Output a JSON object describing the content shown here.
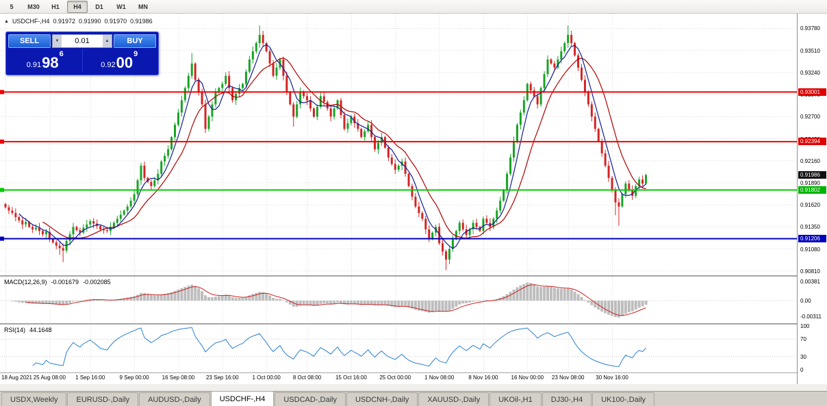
{
  "toolbar": {
    "timeframes": [
      "5",
      "M30",
      "H1",
      "H4",
      "D1",
      "W1",
      "MN"
    ],
    "active": "H4"
  },
  "icons": {
    "collapse_arrow": "▲",
    "spinner_down": "▼",
    "spinner_up": "▲"
  },
  "chart": {
    "header": {
      "symbol": "USDCHF-,H4",
      "open": "0.91972",
      "high": "0.91990",
      "low": "0.91970",
      "close": "0.91986"
    },
    "trade_panel": {
      "sell_label": "SELL",
      "buy_label": "BUY",
      "lot_size": "0.01",
      "sell_price": {
        "small": "0.91",
        "big": "98",
        "sup": "6"
      },
      "buy_price": {
        "small": "0.92",
        "big": "00",
        "sup": "9"
      }
    },
    "y_axis_labels": [
      "0.93780",
      "0.93510",
      "0.93240",
      "0.92970",
      "0.92700",
      "0.92430",
      "0.92160",
      "0.91890",
      "0.91620",
      "0.91350",
      "0.91080",
      "0.90810"
    ],
    "price_tags": [
      {
        "label": "0.93001",
        "price": 0.93001,
        "bg": "#dd0000"
      },
      {
        "label": "0.92394",
        "price": 0.92394,
        "bg": "#dd0000"
      },
      {
        "label": "0.91986",
        "price": 0.91986,
        "bg": "#111111"
      },
      {
        "label": "0.91802",
        "price": 0.91802,
        "bg": "#00b300"
      },
      {
        "label": "0.91206",
        "price": 0.91206,
        "bg": "#0000bb"
      }
    ]
  },
  "indicators": {
    "macd": {
      "name": "MACD(12,26,9)",
      "value_main": "-0.001679",
      "value_signal": "-0.002085",
      "axis_labels": [
        "0.00381",
        "0.00",
        "-0.00311"
      ]
    },
    "rsi": {
      "name": "RSI(14)",
      "value": "44.1648",
      "axis_labels": [
        "100",
        "70",
        "30",
        "0"
      ]
    }
  },
  "tabs": {
    "items": [
      "USDX,Weekly",
      "EURUSD-,Daily",
      "AUDUSD-,Daily",
      "USDCHF-,H4",
      "USDCAD-,Daily",
      "USDCNH-,Daily",
      "XAUUSD-,Daily",
      "UKOil-,H1",
      "DJ30-,H4",
      "UK100-,Daily"
    ],
    "active": "USDCHF-,H4"
  },
  "chart_data": {
    "type": "candlestick",
    "symbol": "USDCHF",
    "timeframe": "H4",
    "current_bar": {
      "open": 0.91972,
      "high": 0.9199,
      "low": 0.9197,
      "close": 0.91986
    },
    "price_axis": {
      "max": 0.9396,
      "min": 0.9075
    },
    "closes": [
      0.9159,
      0.9155,
      0.9152,
      0.9147,
      0.9143,
      0.9138,
      0.9141,
      0.9135,
      0.9132,
      0.9134,
      0.913,
      0.9126,
      0.9129,
      0.912,
      0.9116,
      0.9112,
      0.9109,
      0.9106,
      0.9118,
      0.9126,
      0.9135,
      0.9131,
      0.9128,
      0.9134,
      0.9138,
      0.9142,
      0.9139,
      0.9136,
      0.9132,
      0.9131,
      0.913,
      0.9135,
      0.914,
      0.9145,
      0.915,
      0.9155,
      0.916,
      0.9167,
      0.9175,
      0.9192,
      0.921,
      0.9195,
      0.919,
      0.9185,
      0.9192,
      0.92,
      0.9215,
      0.9222,
      0.923,
      0.9245,
      0.926,
      0.9275,
      0.929,
      0.9305,
      0.932,
      0.9335,
      0.9315,
      0.93,
      0.9285,
      0.9255,
      0.927,
      0.9285,
      0.93,
      0.9305,
      0.931,
      0.932,
      0.9305,
      0.929,
      0.9298,
      0.9305,
      0.931,
      0.9325,
      0.934,
      0.935,
      0.936,
      0.937,
      0.936,
      0.935,
      0.9335,
      0.932,
      0.933,
      0.934,
      0.932,
      0.93,
      0.9285,
      0.927,
      0.9285,
      0.93,
      0.9295,
      0.929,
      0.928,
      0.927,
      0.9282,
      0.9295,
      0.9288,
      0.928,
      0.927,
      0.928,
      0.929,
      0.9272,
      0.9255,
      0.9262,
      0.927,
      0.9262,
      0.9255,
      0.9245,
      0.9252,
      0.926,
      0.9245,
      0.923,
      0.9238,
      0.9245,
      0.9232,
      0.922,
      0.9212,
      0.9205,
      0.921,
      0.9215,
      0.92,
      0.9185,
      0.9172,
      0.916,
      0.9152,
      0.9145,
      0.9132,
      0.912,
      0.9128,
      0.9135,
      0.9115,
      0.9105,
      0.9095,
      0.9108,
      0.912,
      0.913,
      0.914,
      0.9132,
      0.9125,
      0.9132,
      0.914,
      0.9135,
      0.913,
      0.9145,
      0.914,
      0.9135,
      0.9145,
      0.9155,
      0.9167,
      0.918,
      0.92,
      0.922,
      0.924,
      0.926,
      0.9275,
      0.929,
      0.931,
      0.9302,
      0.9295,
      0.9285,
      0.9305,
      0.9322,
      0.934,
      0.9335,
      0.933,
      0.934,
      0.935,
      0.936,
      0.937,
      0.936,
      0.9345,
      0.933,
      0.9315,
      0.93,
      0.9285,
      0.927,
      0.9255,
      0.924,
      0.9225,
      0.921,
      0.9195,
      0.918,
      0.9165,
      0.916,
      0.9175,
      0.9188,
      0.918,
      0.9173,
      0.9185,
      0.9193,
      0.9188,
      0.91986
    ],
    "wick_overrides": {
      "16": [
        0,
        0.0006
      ],
      "17": [
        0,
        0.0009
      ],
      "55": [
        0.0008,
        0
      ],
      "75": [
        0.0008,
        0
      ],
      "85": [
        0,
        0.0008
      ],
      "130": [
        0,
        0.001
      ],
      "166": [
        0.0008,
        0
      ],
      "180": [
        0,
        0.001
      ],
      "181": [
        0,
        0.002
      ]
    },
    "hlines": [
      {
        "price": 0.93001,
        "color": "#ee0000"
      },
      {
        "price": 0.92394,
        "color": "#ee0000"
      },
      {
        "price": 0.91802,
        "color": "#00cc00"
      },
      {
        "price": 0.91206,
        "color": "#0000bb"
      }
    ],
    "x_labels": [
      "18 Aug 2021",
      "25 Aug 08:00",
      "1 Sep 16:00",
      "9 Sep 00:00",
      "16 Sep 08:00",
      "23 Sep 16:00",
      "1 Oct 00:00",
      "8 Oct 08:00",
      "15 Oct 16:00",
      "25 Oct 00:00",
      "1 Nov 08:00",
      "8 Nov 16:00",
      "16 Nov 00:00",
      "23 Nov 08:00",
      "30 Nov 16:00"
    ],
    "x_label_indices": [
      0,
      13,
      25,
      38,
      51,
      64,
      77,
      89,
      102,
      115,
      128,
      141,
      154,
      166,
      179
    ],
    "macd": {
      "main_current": -0.001679,
      "signal_current": -0.002085,
      "axis_values": [
        0.00381,
        0,
        -0.00311
      ]
    },
    "rsi": {
      "current": 44.1648,
      "levels": [
        70,
        30
      ]
    }
  }
}
